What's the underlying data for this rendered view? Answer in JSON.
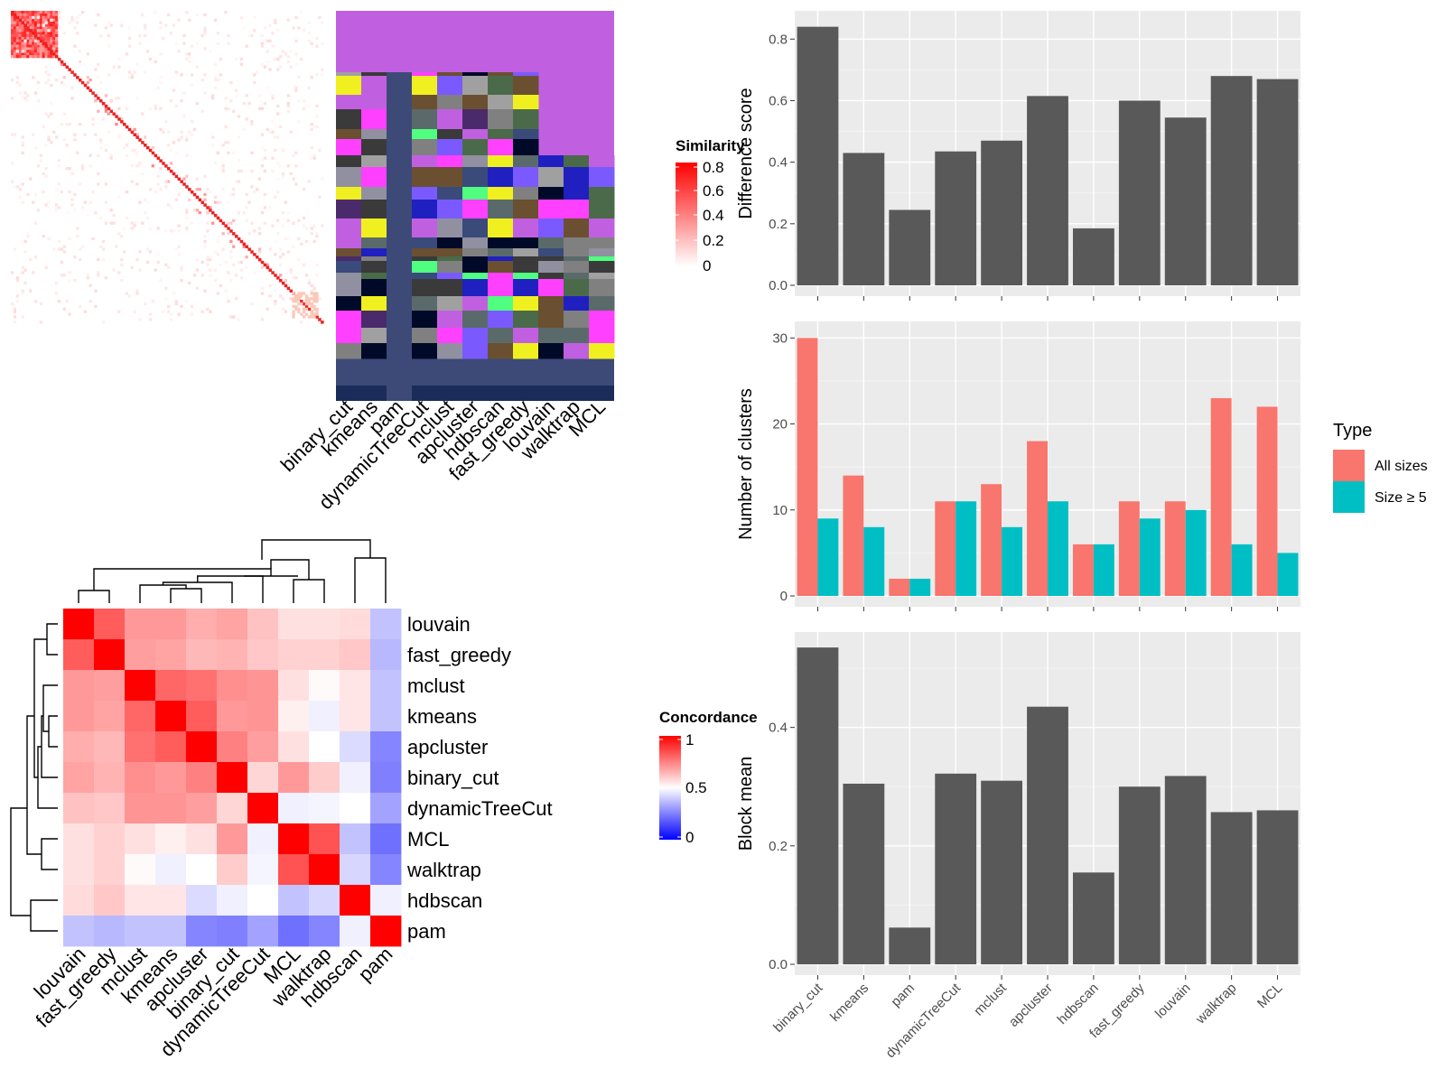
{
  "similarity_heatmap": {
    "legend_title": "Similarity",
    "legend_ticks": [
      "0.8",
      "0.6",
      "0.4",
      "0.2",
      "0"
    ],
    "column_labels": [
      "binary_cut",
      "kmeans",
      "pam",
      "dynamicTreeCut",
      "mclust",
      "apcluster",
      "hdbscan",
      "fast_greedy",
      "louvain",
      "walktrap",
      "MCL"
    ]
  },
  "concordance_heatmap": {
    "legend_title": "Concordance",
    "legend_ticks": [
      "1",
      "0.5",
      "0"
    ],
    "labels": [
      "louvain",
      "fast_greedy",
      "mclust",
      "kmeans",
      "apcluster",
      "binary_cut",
      "dynamicTreeCut",
      "MCL",
      "walktrap",
      "hdbscan",
      "pam"
    ],
    "matrix": [
      [
        1.0,
        0.82,
        0.7,
        0.7,
        0.66,
        0.68,
        0.62,
        0.56,
        0.56,
        0.57,
        0.38
      ],
      [
        0.82,
        1.0,
        0.69,
        0.68,
        0.64,
        0.65,
        0.61,
        0.59,
        0.59,
        0.61,
        0.36
      ],
      [
        0.7,
        0.69,
        1.0,
        0.8,
        0.78,
        0.72,
        0.71,
        0.56,
        0.51,
        0.55,
        0.38
      ],
      [
        0.7,
        0.68,
        0.8,
        1.0,
        0.82,
        0.7,
        0.71,
        0.53,
        0.47,
        0.55,
        0.38
      ],
      [
        0.66,
        0.64,
        0.78,
        0.82,
        1.0,
        0.75,
        0.69,
        0.56,
        0.5,
        0.43,
        0.26
      ],
      [
        0.68,
        0.65,
        0.72,
        0.7,
        0.75,
        1.0,
        0.58,
        0.7,
        0.6,
        0.47,
        0.25
      ],
      [
        0.62,
        0.61,
        0.71,
        0.71,
        0.69,
        0.58,
        1.0,
        0.47,
        0.48,
        0.5,
        0.32
      ],
      [
        0.56,
        0.59,
        0.56,
        0.53,
        0.56,
        0.7,
        0.47,
        1.0,
        0.84,
        0.38,
        0.22
      ],
      [
        0.56,
        0.59,
        0.51,
        0.47,
        0.5,
        0.6,
        0.48,
        0.84,
        1.0,
        0.42,
        0.26
      ],
      [
        0.57,
        0.61,
        0.55,
        0.55,
        0.43,
        0.47,
        0.5,
        0.38,
        0.42,
        1.0,
        0.47
      ],
      [
        0.38,
        0.36,
        0.38,
        0.38,
        0.26,
        0.25,
        0.32,
        0.22,
        0.26,
        0.47,
        1.0
      ]
    ]
  },
  "chart_data": [
    {
      "type": "bar",
      "categories": [
        "binary_cut",
        "kmeans",
        "pam",
        "dynamicTreeCut",
        "mclust",
        "apcluster",
        "hdbscan",
        "fast_greedy",
        "louvain",
        "walktrap",
        "MCL"
      ],
      "values": [
        0.84,
        0.43,
        0.245,
        0.435,
        0.47,
        0.615,
        0.185,
        0.6,
        0.545,
        0.68,
        0.67
      ],
      "title": "",
      "xlabel": "",
      "ylabel": "Difference score",
      "ylim": [
        0,
        0.88
      ],
      "yticks": [
        "0.0",
        "0.2",
        "0.4",
        "0.6",
        "0.8"
      ],
      "grid": true
    },
    {
      "type": "bar",
      "categories": [
        "binary_cut",
        "kmeans",
        "pam",
        "dynamicTreeCut",
        "mclust",
        "apcluster",
        "hdbscan",
        "fast_greedy",
        "louvain",
        "walktrap",
        "MCL"
      ],
      "series": [
        {
          "name": "All sizes",
          "values": [
            30,
            14,
            2,
            11,
            13,
            18,
            6,
            11,
            11,
            23,
            22
          ],
          "color": "#f8766d"
        },
        {
          "name": "Size ≥ 5",
          "values": [
            9,
            8,
            2,
            11,
            8,
            11,
            6,
            9,
            10,
            6,
            5
          ],
          "color": "#00bfc4"
        }
      ],
      "title": "",
      "xlabel": "",
      "ylabel": "Number of clusters",
      "ylim": [
        0,
        31.5
      ],
      "yticks": [
        "0",
        "10",
        "20",
        "30"
      ],
      "legend_title": "Type",
      "legend_position": "right",
      "grid": true
    },
    {
      "type": "bar",
      "categories": [
        "binary_cut",
        "kmeans",
        "pam",
        "dynamicTreeCut",
        "mclust",
        "apcluster",
        "hdbscan",
        "fast_greedy",
        "louvain",
        "walktrap",
        "MCL"
      ],
      "values": [
        0.535,
        0.305,
        0.062,
        0.322,
        0.31,
        0.435,
        0.155,
        0.3,
        0.318,
        0.257,
        0.26
      ],
      "title": "",
      "xlabel": "",
      "ylabel": "Block mean",
      "ylim": [
        0,
        0.555
      ],
      "yticks": [
        "0.0",
        "0.2",
        "0.4"
      ],
      "grid": true
    }
  ]
}
